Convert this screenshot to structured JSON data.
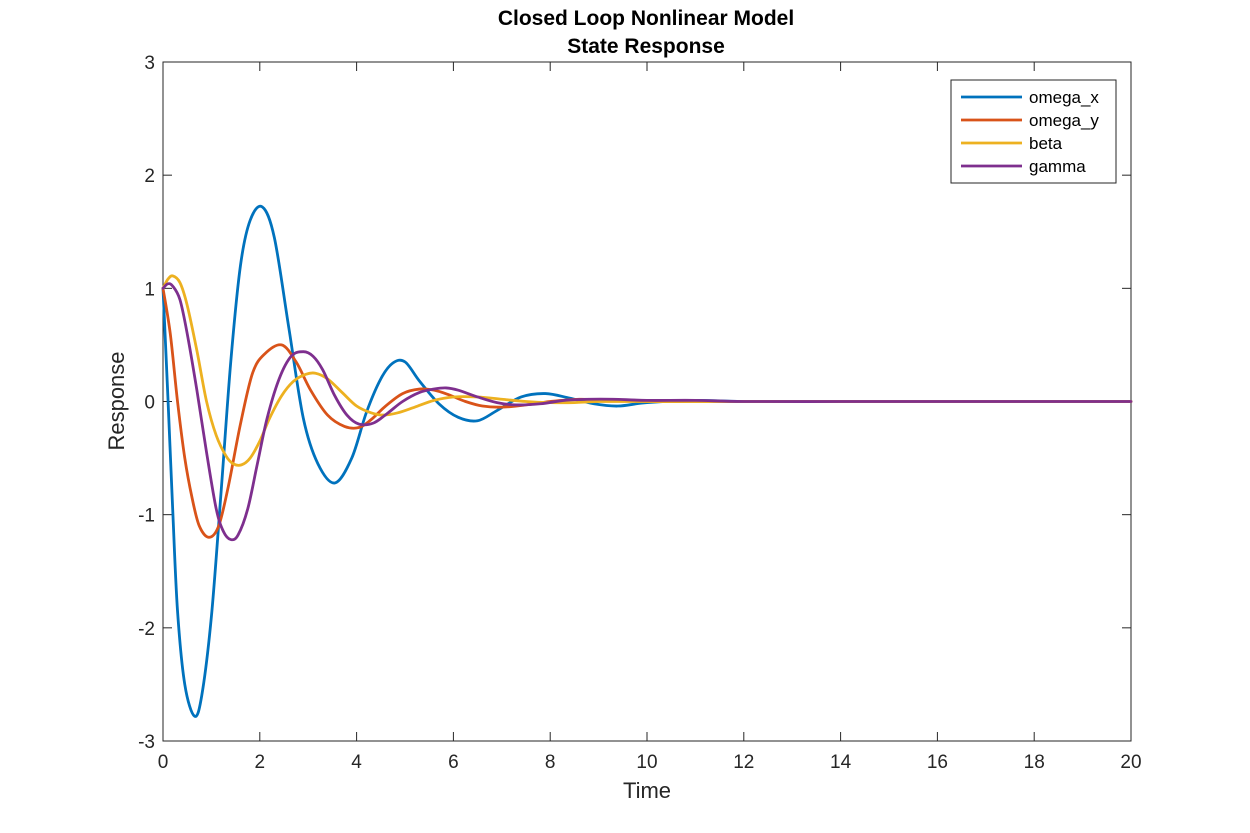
{
  "chart_data": {
    "type": "line",
    "title": [
      "Closed Loop Nonlinear Model",
      "State Response"
    ],
    "xlabel": "Time",
    "ylabel": "Response",
    "xlim": [
      0,
      20
    ],
    "ylim": [
      -3,
      3
    ],
    "xticks": [
      0,
      2,
      4,
      6,
      8,
      10,
      12,
      14,
      16,
      18,
      20
    ],
    "yticks": [
      -3,
      -2,
      -1,
      0,
      1,
      2,
      3
    ],
    "grid": false,
    "legend_position": "top-right",
    "series": [
      {
        "name": "omega_x",
        "color": "#0072BD",
        "x": [
          0,
          0.1,
          0.2,
          0.3,
          0.45,
          0.65,
          0.8,
          1.0,
          1.2,
          1.4,
          1.6,
          1.8,
          2.05,
          2.3,
          2.6,
          2.9,
          3.2,
          3.55,
          3.9,
          4.2,
          4.5,
          4.75,
          5.0,
          5.3,
          5.7,
          6.1,
          6.5,
          6.9,
          7.4,
          7.9,
          8.4,
          8.9,
          9.4,
          10.0,
          11.0,
          12.0,
          14.0,
          16.0,
          18.0,
          20.0
        ],
        "y": [
          1.0,
          0.05,
          -0.95,
          -1.85,
          -2.5,
          -2.78,
          -2.6,
          -1.9,
          -0.8,
          0.35,
          1.2,
          1.6,
          1.72,
          1.45,
          0.65,
          -0.15,
          -0.55,
          -0.72,
          -0.5,
          -0.1,
          0.2,
          0.34,
          0.35,
          0.18,
          -0.02,
          -0.14,
          -0.17,
          -0.08,
          0.04,
          0.07,
          0.03,
          -0.02,
          -0.04,
          -0.01,
          0.01,
          0.0,
          0.0,
          0.0,
          0.0,
          0.0
        ]
      },
      {
        "name": "omega_y",
        "color": "#D95319",
        "x": [
          0,
          0.15,
          0.3,
          0.45,
          0.6,
          0.75,
          0.95,
          1.15,
          1.35,
          1.6,
          1.85,
          2.1,
          2.45,
          2.75,
          3.05,
          3.4,
          3.75,
          4.05,
          4.3,
          4.6,
          4.95,
          5.3,
          5.6,
          5.9,
          6.25,
          6.6,
          7.0,
          7.5,
          8.0,
          8.6,
          9.2,
          10.0,
          11.0,
          12.0,
          14.0,
          16.0,
          18.0,
          20.0
        ],
        "y": [
          1.0,
          0.6,
          0.0,
          -0.5,
          -0.85,
          -1.1,
          -1.2,
          -1.1,
          -0.75,
          -0.2,
          0.25,
          0.42,
          0.5,
          0.35,
          0.1,
          -0.12,
          -0.22,
          -0.23,
          -0.16,
          -0.04,
          0.07,
          0.11,
          0.1,
          0.06,
          0.0,
          -0.04,
          -0.05,
          -0.03,
          0.0,
          0.02,
          0.01,
          0.0,
          0.0,
          0.0,
          0.0,
          0.0,
          0.0,
          0.0
        ]
      },
      {
        "name": "beta",
        "color": "#EDB120",
        "x": [
          0,
          0.1,
          0.2,
          0.35,
          0.5,
          0.7,
          0.9,
          1.1,
          1.3,
          1.45,
          1.62,
          1.8,
          2.0,
          2.2,
          2.45,
          2.7,
          2.95,
          3.15,
          3.4,
          3.7,
          4.0,
          4.3,
          4.55,
          4.85,
          5.2,
          5.6,
          6.0,
          6.5,
          7.0,
          7.5,
          8.0,
          8.5,
          9.0,
          10.0,
          11.0,
          12.0,
          14.0,
          16.0,
          18.0,
          20.0
        ],
        "y": [
          1.0,
          1.08,
          1.11,
          1.05,
          0.85,
          0.45,
          0.0,
          -0.3,
          -0.48,
          -0.55,
          -0.56,
          -0.5,
          -0.35,
          -0.15,
          0.05,
          0.18,
          0.24,
          0.25,
          0.2,
          0.08,
          -0.04,
          -0.1,
          -0.12,
          -0.1,
          -0.05,
          0.01,
          0.04,
          0.04,
          0.02,
          0.0,
          -0.01,
          -0.01,
          0.0,
          0.0,
          0.0,
          0.0,
          0.0,
          0.0,
          0.0,
          0.0
        ]
      },
      {
        "name": "gamma",
        "color": "#7E2F8E",
        "x": [
          0,
          0.1,
          0.2,
          0.35,
          0.5,
          0.7,
          0.9,
          1.1,
          1.25,
          1.4,
          1.55,
          1.75,
          1.95,
          2.15,
          2.4,
          2.65,
          2.9,
          3.1,
          3.3,
          3.55,
          3.8,
          4.05,
          4.35,
          4.65,
          4.95,
          5.3,
          5.6,
          5.85,
          6.1,
          6.5,
          6.9,
          7.3,
          7.8,
          8.3,
          8.8,
          9.3,
          10.0,
          11.0,
          12.0,
          14.0,
          16.0,
          18.0,
          20.0
        ],
        "y": [
          1.0,
          1.04,
          1.02,
          0.9,
          0.6,
          0.1,
          -0.45,
          -0.95,
          -1.15,
          -1.22,
          -1.18,
          -0.95,
          -0.55,
          -0.15,
          0.2,
          0.4,
          0.44,
          0.4,
          0.28,
          0.05,
          -0.12,
          -0.2,
          -0.19,
          -0.1,
          0.0,
          0.08,
          0.11,
          0.12,
          0.1,
          0.04,
          -0.01,
          -0.03,
          -0.02,
          0.01,
          0.02,
          0.02,
          0.01,
          0.01,
          0.0,
          0.0,
          0.0,
          0.0,
          0.0
        ]
      }
    ]
  }
}
